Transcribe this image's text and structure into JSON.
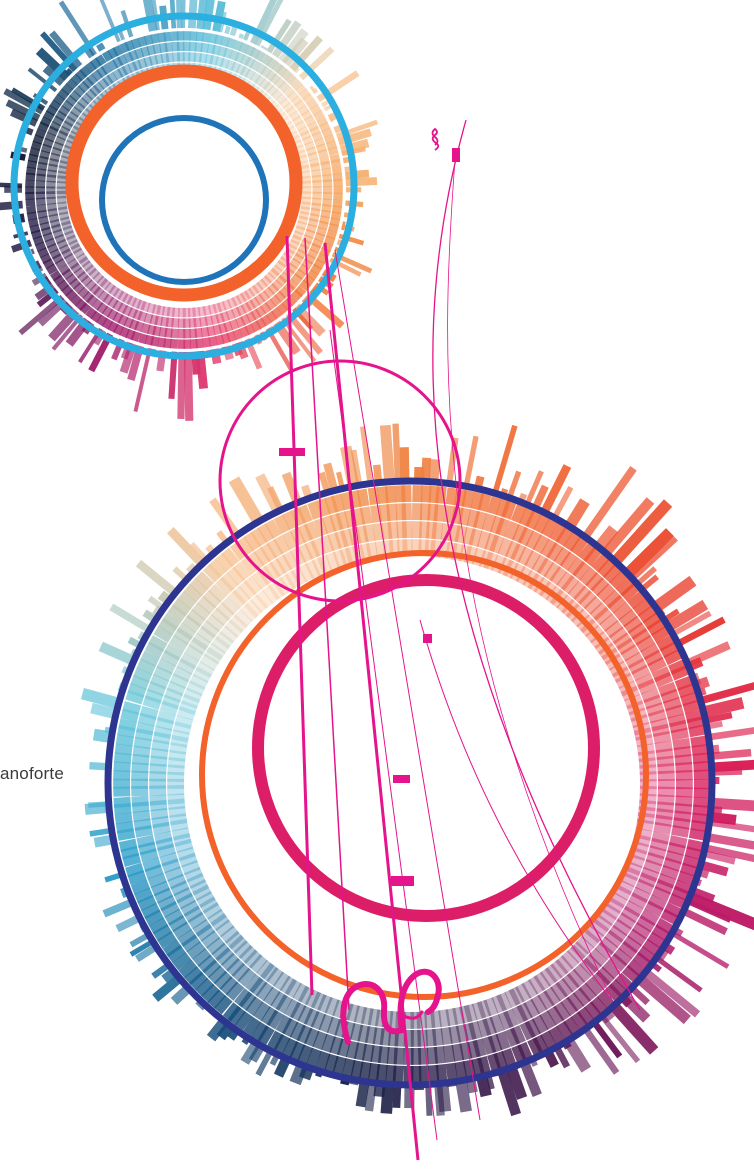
{
  "label": {
    "text": "anoforte"
  },
  "colors": {
    "cyan_ring": "#2BAEE0",
    "orange_ring": "#F2622A",
    "blue_inner_ring": "#1E73B9",
    "magenta": "#E5148C",
    "navy_ring": "#2E3590",
    "crimson_ring": "#DC1D67",
    "bars_warm": [
      "#F5A35A",
      "#F0783A",
      "#E9402F",
      "#D91E5E",
      "#B01A6A",
      "#6C1A5E"
    ],
    "bars_cool": [
      "#3FB8D2",
      "#1D8FBE",
      "#145E8E",
      "#1B2A55",
      "#0E1A33"
    ]
  },
  "visual": {
    "description_type": "abstract circular radial bar rings",
    "icons": [
      "radial-burst",
      "pink-swirl-icon"
    ]
  }
}
